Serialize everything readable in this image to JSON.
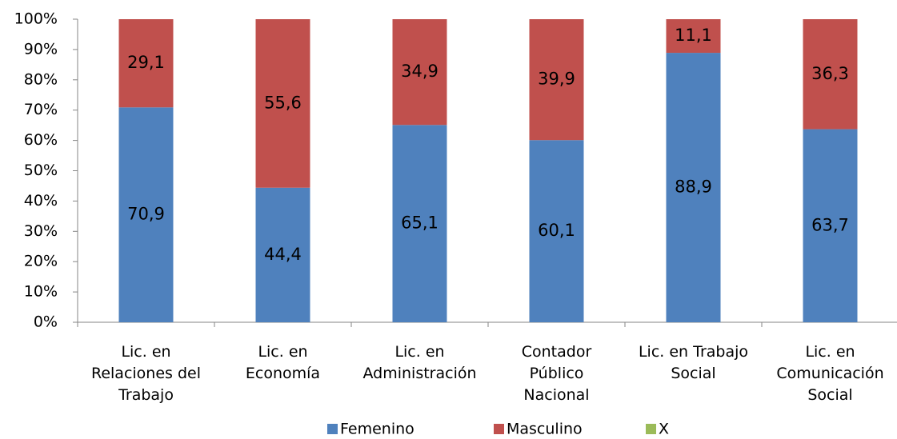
{
  "chart_data": {
    "type": "stacked_bar",
    "categories": [
      "Lic. en\nRelaciones del\nTrabajo",
      "Lic. en\nEconomía",
      "Lic. en\nAdministración",
      "Contador\nPúblico\nNacional",
      "Lic. en Trabajo\nSocial",
      "Lic. en\nComunicación\nSocial"
    ],
    "series": [
      {
        "name": "Femenino",
        "color": "#4f81bd",
        "values": [
          70.9,
          44.4,
          65.1,
          60.1,
          88.9,
          63.7
        ],
        "value_labels": [
          "70,9",
          "44,4",
          "65,1",
          "60,1",
          "88,9",
          "63,7"
        ]
      },
      {
        "name": "Masculino",
        "color": "#c0504d",
        "values": [
          29.1,
          55.6,
          34.9,
          39.9,
          11.1,
          36.3
        ],
        "value_labels": [
          "29,1",
          "55,6",
          "34,9",
          "39,9",
          "11,1",
          "36,3"
        ]
      },
      {
        "name": "X",
        "color": "#9bbb59",
        "values": [
          0,
          0,
          0,
          0,
          0,
          0
        ]
      }
    ],
    "ylim": [
      0,
      100
    ],
    "yticks": [
      {
        "value": 0,
        "label": "0%"
      },
      {
        "value": 10,
        "label": "10%"
      },
      {
        "value": 20,
        "label": "20%"
      },
      {
        "value": 30,
        "label": "30%"
      },
      {
        "value": 40,
        "label": "40%"
      },
      {
        "value": 50,
        "label": "50%"
      },
      {
        "value": 60,
        "label": "60%"
      },
      {
        "value": 70,
        "label": "70%"
      },
      {
        "value": 80,
        "label": "80%"
      },
      {
        "value": 90,
        "label": "90%"
      },
      {
        "value": 100,
        "label": "100%"
      }
    ],
    "legend": "bottom"
  }
}
